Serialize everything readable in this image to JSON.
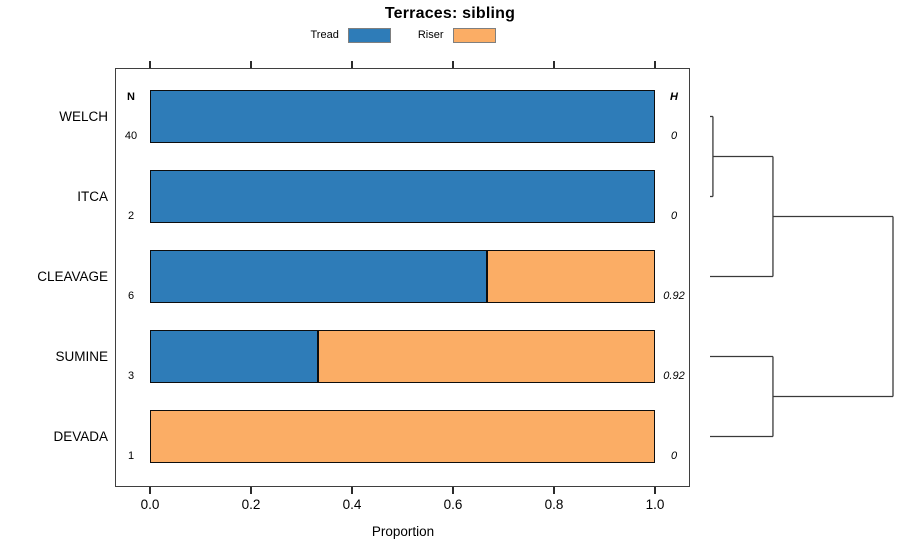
{
  "chart_data": {
    "type": "bar",
    "orientation": "horizontal-stacked",
    "title": "Terraces: sibling",
    "xlabel": "Proportion",
    "categories": [
      "WELCH",
      "ITCA",
      "CLEAVAGE",
      "SUMINE",
      "DEVADA"
    ],
    "series": [
      {
        "name": "Tread",
        "color": "#2E7CB8",
        "values": [
          1.0,
          1.0,
          0.667,
          0.333,
          0.0
        ]
      },
      {
        "name": "Riser",
        "color": "#FBAD65",
        "values": [
          0.0,
          0.0,
          0.333,
          0.667,
          1.0
        ]
      }
    ],
    "annotation_columns": {
      "n_header": "N",
      "h_header": "H",
      "n_values": [
        "40",
        "2",
        "6",
        "3",
        "1"
      ],
      "h_values": [
        "0",
        "0",
        "0.92",
        "0.92",
        "0"
      ]
    },
    "xlim": [
      0,
      1
    ],
    "x_tick_values": [
      0,
      0.2,
      0.4,
      0.6,
      0.8,
      1.0
    ],
    "x_tick_labels": [
      "0.0",
      "0.2",
      "0.4",
      "0.6",
      "0.8",
      "1.0"
    ],
    "grid": false,
    "legend_position": "top",
    "dendrogram": {
      "orientation": "right",
      "linkage": [
        {
          "id": "node0",
          "children": [
            "WELCH",
            "ITCA"
          ],
          "height": 0.016
        },
        {
          "id": "node1",
          "children": [
            "node0",
            "CLEAVAGE"
          ],
          "height": 0.344
        },
        {
          "id": "node2",
          "children": [
            "SUMINE",
            "DEVADA"
          ],
          "height": 0.344
        },
        {
          "id": "node3",
          "children": [
            "node1",
            "node2"
          ],
          "height": 1.0
        }
      ],
      "line_color": "#3a3a3a"
    }
  }
}
